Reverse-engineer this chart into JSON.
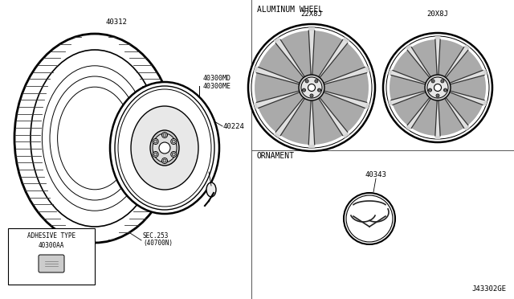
{
  "bg_color": "#ffffff",
  "line_color": "#000000",
  "fig_width": 6.4,
  "fig_height": 3.72,
  "dpi": 100,
  "labels": {
    "part_40312": "40312",
    "part_40300MD": "40300MD",
    "part_40300ME": "40300ME",
    "part_40224": "40224",
    "part_40300AA": "40300AA",
    "part_sec253": "SEC.253",
    "part_40700N": "(40700N)",
    "part_adhesive": "ADHESIVE TYPE",
    "aluminum_wheel": "ALUMINUM WHEEL",
    "size_22x8j": "22X8J",
    "size_20x8j": "20X8J",
    "part_40300ME_label": "40300ME",
    "part_40300MD_label": "40300MD",
    "ornament": "ORNAMENT",
    "part_40343": "40343",
    "diagram_id": "J43302GE"
  }
}
